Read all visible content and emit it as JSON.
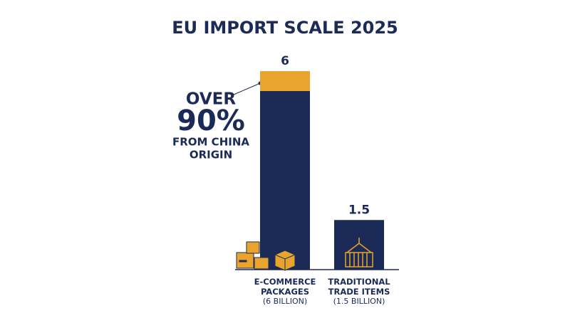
{
  "chart_data": {
    "type": "stacked-bar",
    "title": "EU IMPORT SCALE 2025",
    "categories": [
      "E-COMMERCE PACKAGES",
      "TRADITIONAL TRADE ITEMS"
    ],
    "category_notes": [
      "(6 BILLION)",
      "(1.5 BILLION)"
    ],
    "series": [
      {
        "color": "#1b2a56",
        "values": [
          5.4,
          1.5
        ]
      },
      {
        "color": "#e8a42c",
        "values": [
          0.6,
          null
        ]
      }
    ],
    "totals": [
      6,
      1.5
    ],
    "ylim": [
      0,
      6
    ],
    "annotation": [
      "OVER",
      "90%",
      "FROM CHINA",
      "ORIGIN"
    ]
  }
}
